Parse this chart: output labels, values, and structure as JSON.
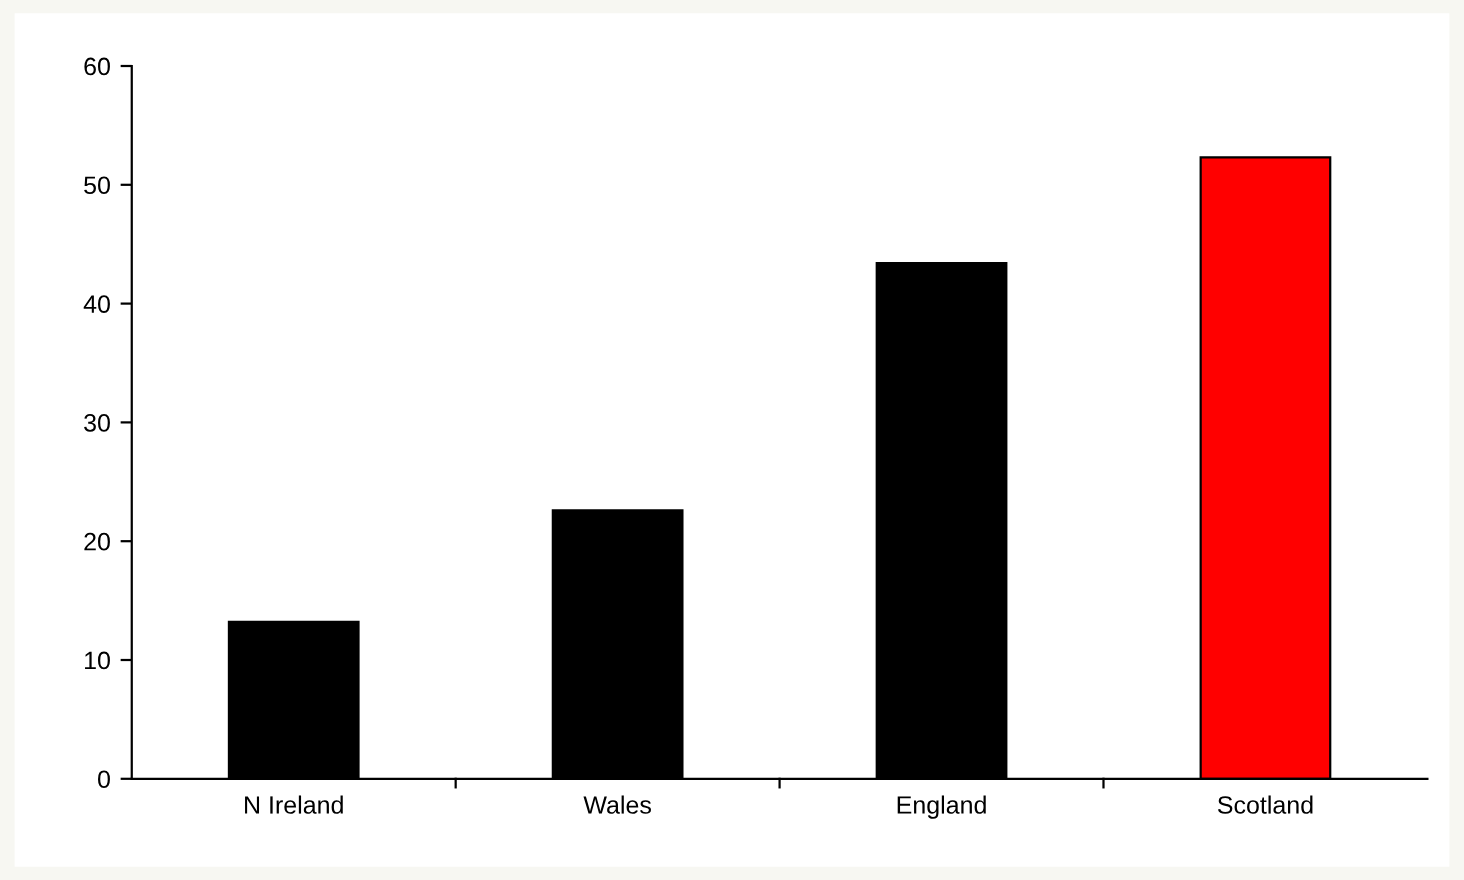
{
  "chart_data": {
    "type": "bar",
    "categories": [
      "N Ireland",
      "Wales",
      "England",
      "Scotland"
    ],
    "values": [
      13.2,
      22.6,
      43.4,
      52.3
    ],
    "colors": [
      "#000000",
      "#000000",
      "#000000",
      "#ff0000"
    ],
    "ylim": [
      0,
      60
    ],
    "yticks": [
      0,
      10,
      20,
      30,
      40,
      50,
      60
    ],
    "grid": false,
    "legend": false
  }
}
